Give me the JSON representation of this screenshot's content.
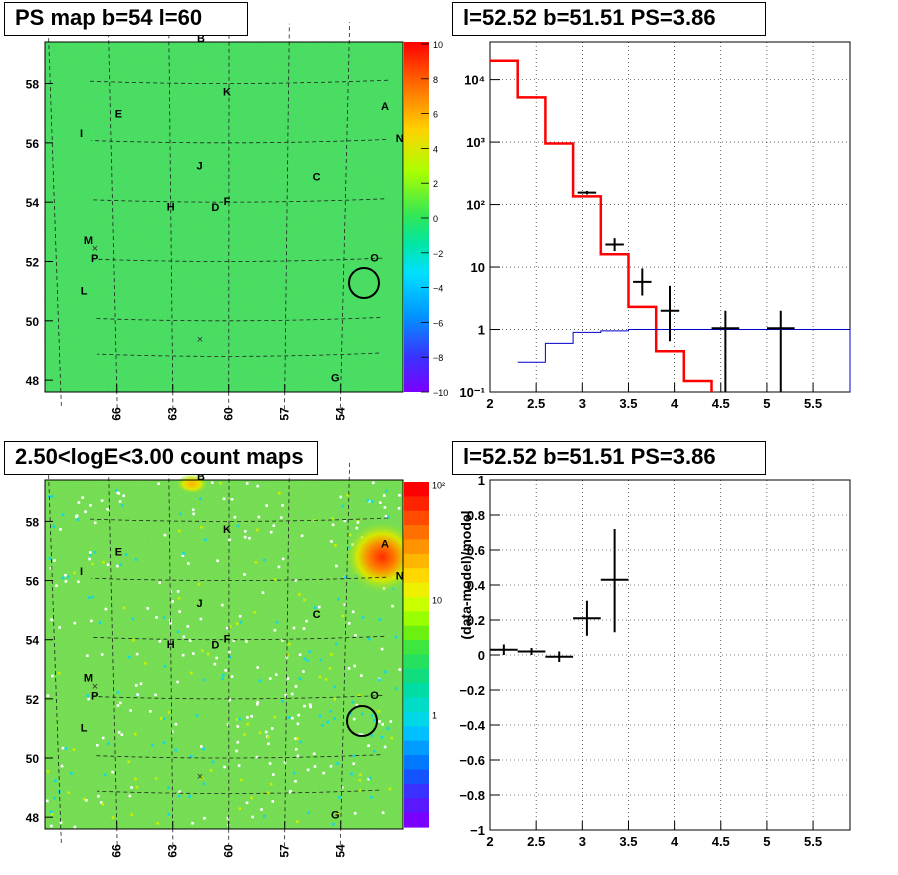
{
  "panels": {
    "ps_map": {
      "title": "PS map b=54 l=60"
    },
    "count_map": {
      "title": "2.50<logE<3.00 count maps"
    },
    "spectrum": {
      "title": "l=52.52 b=51.51 PS=3.86"
    },
    "residual": {
      "title": "l=52.52 b=51.51 PS=3.86"
    }
  },
  "map_axes": {
    "x_ticks": [
      "66",
      "63",
      "60",
      "57",
      "54"
    ],
    "y_ticks": [
      "58",
      "56",
      "54",
      "52",
      "50",
      "48"
    ]
  },
  "source_labels": [
    {
      "label": "B",
      "l": 61.4,
      "b": 59.4
    },
    {
      "label": "K",
      "l": 60.1,
      "b": 57.6
    },
    {
      "label": "A",
      "l": 52.1,
      "b": 57.0
    },
    {
      "label": "E",
      "l": 65.6,
      "b": 56.8
    },
    {
      "label": "I",
      "l": 67.5,
      "b": 56.1
    },
    {
      "label": "N",
      "l": 51.3,
      "b": 55.9
    },
    {
      "label": "J",
      "l": 61.5,
      "b": 55.1
    },
    {
      "label": "C",
      "l": 55.5,
      "b": 54.7
    },
    {
      "label": "F",
      "l": 60.1,
      "b": 53.9
    },
    {
      "label": "H",
      "l": 63.0,
      "b": 53.7
    },
    {
      "label": "D",
      "l": 60.7,
      "b": 53.7
    },
    {
      "label": "M",
      "l": 67.3,
      "b": 52.5
    },
    {
      "label": "P",
      "l": 67.0,
      "b": 51.9
    },
    {
      "label": "O",
      "l": 52.4,
      "b": 51.9
    },
    {
      "label": "L",
      "l": 67.6,
      "b": 50.8
    },
    {
      "label": "G",
      "l": 54.3,
      "b": 47.9
    }
  ],
  "ps_colorbar": {
    "labels": [
      "10",
      "8",
      "6",
      "4",
      "2",
      "0",
      "−2",
      "−4",
      "−6",
      "−8",
      "−10"
    ]
  },
  "count_colorbar": {
    "labels": [
      "10²",
      "10",
      "1"
    ]
  },
  "chart_data": [
    {
      "type": "line",
      "panel": "spectrum",
      "title": "l=52.52 b=51.51 PS=3.86",
      "xlim": [
        2,
        5.9
      ],
      "ylim": [
        0.1,
        40000
      ],
      "yscale": "log",
      "x_ticks": [
        "2",
        "2.5",
        "3",
        "3.5",
        "4",
        "4.5",
        "5",
        "5.5"
      ],
      "y_ticks": [
        "10⁻¹",
        "1",
        "10",
        "10²",
        "10³",
        "10⁴"
      ],
      "grid": true,
      "series": [
        {
          "color": "#ff0000",
          "step_edges": [
            2.0,
            2.3,
            2.6,
            2.9,
            3.2,
            3.5,
            3.8,
            4.1,
            4.4
          ],
          "values": [
            20000,
            5200,
            950,
            135,
            16,
            2.3,
            0.45,
            0.15
          ]
        },
        {
          "color": "#0000cc",
          "step_edges": [
            2.3,
            2.6,
            2.9,
            3.2,
            3.5,
            3.8,
            4.1,
            4.4,
            4.7,
            5.0,
            5.3,
            5.6,
            5.9
          ],
          "values": [
            0.3,
            0.6,
            0.9,
            0.95,
            1.0,
            1.0,
            1.0,
            1.0,
            1.0,
            1.0,
            1.0,
            1.0
          ]
        },
        {
          "color": "#000000",
          "points": [
            {
              "x": 3.05,
              "xlo": 2.95,
              "xhi": 3.15,
              "y": 155,
              "ylo": 145,
              "yhi": 165
            },
            {
              "x": 3.35,
              "xlo": 3.25,
              "xhi": 3.45,
              "y": 23,
              "ylo": 18,
              "yhi": 29
            },
            {
              "x": 3.65,
              "xlo": 3.55,
              "xhi": 3.75,
              "y": 5.8,
              "ylo": 3.5,
              "yhi": 9.5
            },
            {
              "x": 3.95,
              "xlo": 3.85,
              "xhi": 4.05,
              "y": 2.0,
              "ylo": 0.65,
              "yhi": 5.0
            },
            {
              "x": 4.55,
              "xlo": 4.4,
              "xhi": 4.7,
              "y": 1.05,
              "ylo": 0.1,
              "yhi": 2.0
            },
            {
              "x": 5.15,
              "xlo": 5.0,
              "xhi": 5.3,
              "y": 1.05,
              "ylo": 0.1,
              "yhi": 2.0
            }
          ]
        }
      ]
    },
    {
      "type": "scatter",
      "panel": "residual",
      "title": "l=52.52 b=51.51 PS=3.86",
      "ylabel": "(data-model)/model",
      "xlim": [
        2,
        5.9
      ],
      "ylim": [
        -1,
        1
      ],
      "x_ticks": [
        "2",
        "2.5",
        "3",
        "3.5",
        "4",
        "4.5",
        "5",
        "5.5"
      ],
      "y_ticks": [
        "1",
        "0.8",
        "0.6",
        "0.4",
        "0.2",
        "0",
        "−0.2",
        "−0.4",
        "−0.6",
        "−0.8",
        "−1"
      ],
      "grid": true,
      "series": [
        {
          "color": "#000000",
          "points": [
            {
              "x": 2.15,
              "xlo": 2.0,
              "xhi": 2.3,
              "y": 0.03,
              "ylo": 0.0,
              "yhi": 0.06
            },
            {
              "x": 2.45,
              "xlo": 2.3,
              "xhi": 2.6,
              "y": 0.02,
              "ylo": 0.0,
              "yhi": 0.04
            },
            {
              "x": 2.75,
              "xlo": 2.6,
              "xhi": 2.9,
              "y": -0.01,
              "ylo": -0.04,
              "yhi": 0.02
            },
            {
              "x": 3.05,
              "xlo": 2.9,
              "xhi": 3.2,
              "y": 0.21,
              "ylo": 0.11,
              "yhi": 0.31
            },
            {
              "x": 3.35,
              "xlo": 3.2,
              "xhi": 3.5,
              "y": 0.43,
              "ylo": 0.13,
              "yhi": 0.72
            }
          ]
        }
      ]
    }
  ]
}
